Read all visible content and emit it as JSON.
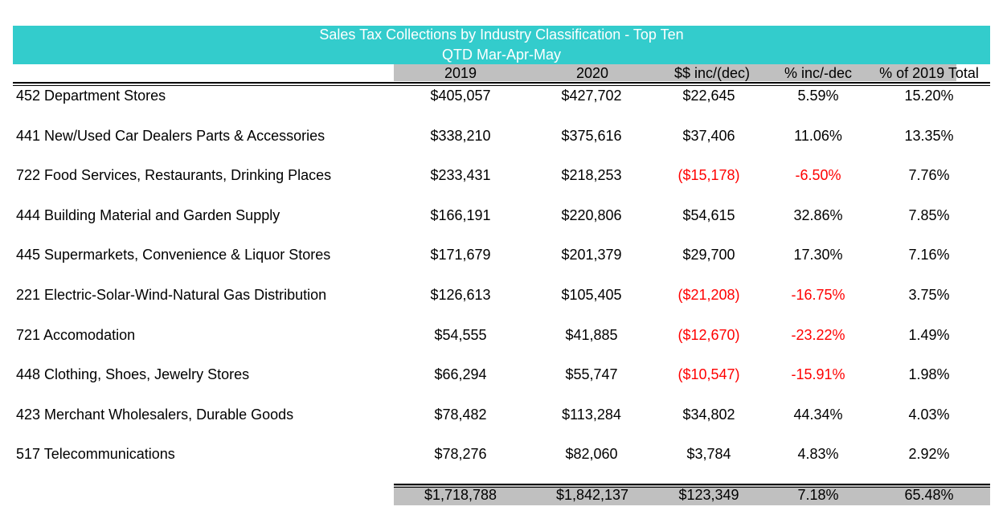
{
  "title_line1": "Sales Tax Collections by Industry Classification - Top Ten",
  "title_line2": "QTD Mar-Apr-May",
  "headers": {
    "y2019": "2019",
    "y2020": "2020",
    "inc_dec": "$$ inc/(dec)",
    "pct_inc_dec": "% inc/-dec",
    "pct_total": "% of 2019 Total"
  },
  "rows": [
    {
      "label": "452 Department Stores",
      "y2019": "$405,057",
      "y2020": "$427,702",
      "inc_dec": "$22,645",
      "pct": "5.59%",
      "pct_total": "15.20%",
      "negative": false
    },
    {
      "label": "441 New/Used Car Dealers Parts & Accessories",
      "y2019": "$338,210",
      "y2020": "$375,616",
      "inc_dec": "$37,406",
      "pct": "11.06%",
      "pct_total": "13.35%",
      "negative": false
    },
    {
      "label": "722 Food Services, Restaurants, Drinking Places",
      "y2019": "$233,431",
      "y2020": "$218,253",
      "inc_dec": "($15,178)",
      "pct": "-6.50%",
      "pct_total": "7.76%",
      "negative": true
    },
    {
      "label": "444 Building Material and Garden Supply",
      "y2019": "$166,191",
      "y2020": "$220,806",
      "inc_dec": "$54,615",
      "pct": "32.86%",
      "pct_total": "7.85%",
      "negative": false
    },
    {
      "label": "445 Supermarkets, Convenience & Liquor Stores",
      "y2019": "$171,679",
      "y2020": "$201,379",
      "inc_dec": "$29,700",
      "pct": "17.30%",
      "pct_total": "7.16%",
      "negative": false
    },
    {
      "label": "221 Electric-Solar-Wind-Natural Gas Distribution",
      "y2019": "$126,613",
      "y2020": "$105,405",
      "inc_dec": "($21,208)",
      "pct": "-16.75%",
      "pct_total": "3.75%",
      "negative": true
    },
    {
      "label": "721 Accomodation",
      "y2019": "$54,555",
      "y2020": "$41,885",
      "inc_dec": "($12,670)",
      "pct": "-23.22%",
      "pct_total": "1.49%",
      "negative": true
    },
    {
      "label": "448 Clothing, Shoes, Jewelry Stores",
      "y2019": "$66,294",
      "y2020": "$55,747",
      "inc_dec": "($10,547)",
      "pct": "-15.91%",
      "pct_total": "1.98%",
      "negative": true
    },
    {
      "label": "423 Merchant Wholesalers, Durable Goods",
      "y2019": "$78,482",
      "y2020": "$113,284",
      "inc_dec": "$34,802",
      "pct": "44.34%",
      "pct_total": "4.03%",
      "negative": false
    },
    {
      "label": "517 Telecommunications",
      "y2019": "$78,276",
      "y2020": "$82,060",
      "inc_dec": "$3,784",
      "pct": "4.83%",
      "pct_total": "2.92%",
      "negative": false
    }
  ],
  "totals": {
    "y2019": "$1,718,788",
    "y2020": "$1,842,137",
    "inc_dec": "$123,349",
    "pct": "7.18%",
    "pct_total": "65.48%"
  },
  "colors": {
    "title_band": "#33cccc",
    "header_shade": "#c0c0c0",
    "negative": "#ff0000"
  }
}
